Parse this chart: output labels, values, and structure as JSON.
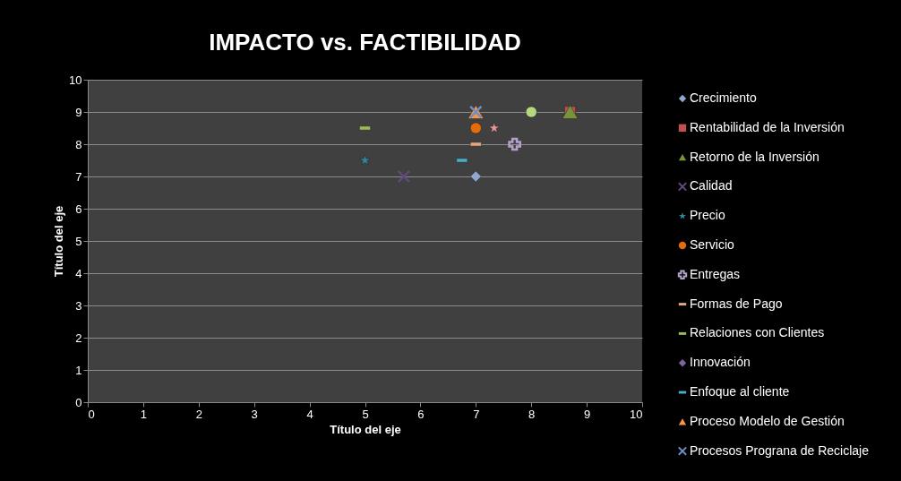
{
  "chart_data": {
    "type": "scatter",
    "title": "IMPACTO vs.  FACTIBILIDAD",
    "xlabel": "Título del eje",
    "ylabel": "Título del eje",
    "xlim": [
      0,
      10
    ],
    "ylim": [
      0,
      10
    ],
    "xticks": [
      0,
      1,
      2,
      3,
      4,
      5,
      6,
      7,
      8,
      9,
      10
    ],
    "yticks": [
      0,
      1,
      2,
      3,
      4,
      5,
      6,
      7,
      8,
      9,
      10
    ],
    "grid": "y",
    "legend": "right",
    "series": [
      {
        "name": "Crecimiento",
        "color": "#8fa8d0",
        "marker": "diamond",
        "x": [
          7
        ],
        "values": [
          7
        ]
      },
      {
        "name": "Rentabilidad de la Inversión",
        "color": "#c0504d",
        "marker": "square",
        "x": [
          8.7
        ],
        "values": [
          9
        ]
      },
      {
        "name": "Retorno de la Inversión",
        "color": "#77933c",
        "marker": "triangle",
        "x": [
          8.7
        ],
        "values": [
          9
        ]
      },
      {
        "name": "Calidad",
        "color": "#604a7b",
        "marker": "x",
        "x": [
          5.7
        ],
        "values": [
          7
        ]
      },
      {
        "name": "Precio",
        "color": "#31859c",
        "marker": "star",
        "x": [
          5
        ],
        "values": [
          7.5
        ]
      },
      {
        "name": "Servicio",
        "color": "#e46c0a",
        "marker": "circle",
        "x": [
          7
        ],
        "values": [
          8.5
        ]
      },
      {
        "name": "Entregas",
        "color": "#b3a2c7",
        "marker": "cross",
        "x": [
          7.7
        ],
        "values": [
          8
        ]
      },
      {
        "name": "Formas de Pago",
        "color": "#e6a57a",
        "x": [
          7
        ],
        "values": [
          8
        ]
      },
      {
        "name": "Relaciones con Clientes",
        "color": "#9bbb59",
        "x": [
          5
        ],
        "values": [
          8.5
        ]
      },
      {
        "name": "Innovación",
        "color": "#8064a2",
        "marker": "diamond",
        "values": [
          null
        ]
      },
      {
        "name": "Enfoque al cliente",
        "color": "#4bacc6",
        "x": [
          6.75
        ],
        "values": [
          7.5
        ]
      },
      {
        "name": "Proceso Modelo de Gestión",
        "color": "#f79646",
        "marker": "triangle",
        "x": [
          7
        ],
        "values": [
          9
        ]
      },
      {
        "name": "Procesos Prograna de Reciclaje",
        "color": "#6f8fc4",
        "marker": "x",
        "x": [
          7
        ],
        "values": [
          9
        ]
      },
      {
        "color": "#b5d77d",
        "marker": "circle",
        "x": [
          8
        ],
        "values": [
          9
        ]
      },
      {
        "color": "#e6959a",
        "marker": "star",
        "x": [
          7.33
        ],
        "values": [
          8.5
        ]
      }
    ]
  }
}
